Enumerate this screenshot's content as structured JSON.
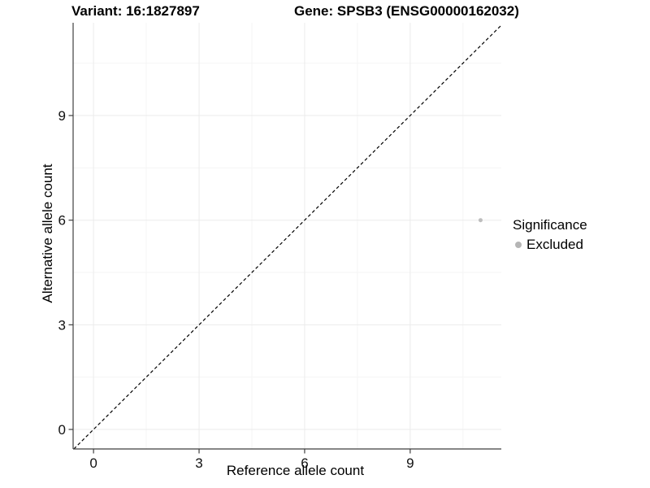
{
  "chart_data": {
    "type": "scatter",
    "titles": {
      "left": "Variant: 16:1827897",
      "right": "Gene: SPSB3 (ENSG00000162032)"
    },
    "xlabel": "Reference allele count",
    "ylabel": "Alternative allele count",
    "xlim": [
      -0.58,
      11.59
    ],
    "ylim": [
      -0.56,
      11.66
    ],
    "xticks": [
      0,
      3,
      6,
      9
    ],
    "yticks": [
      0,
      3,
      6,
      9
    ],
    "x_minor_ticks": [
      1.5,
      4.5,
      7.5,
      10.5
    ],
    "y_minor_ticks": [
      1.5,
      4.5,
      7.5,
      10.5
    ],
    "grid": {
      "major": true,
      "minor": true
    },
    "abline": {
      "slope": 1,
      "intercept": 0,
      "style": "dashed",
      "color": "#000000"
    },
    "series": [
      {
        "name": "Excluded",
        "color": "#bdbdbd",
        "points": [
          {
            "x": 11,
            "y": 6
          }
        ]
      }
    ],
    "legend": {
      "position": "right",
      "title": "Significance",
      "entries": [
        {
          "label": "Excluded",
          "color": "#b5b5b5"
        }
      ]
    }
  },
  "colors": {
    "background": "#ffffff",
    "grid_major": "#ebebeb",
    "grid_minor": "#f5f5f5",
    "axis_line": "#3f3f3f",
    "tick_label": "#111111",
    "point": "#bdbdbd"
  }
}
